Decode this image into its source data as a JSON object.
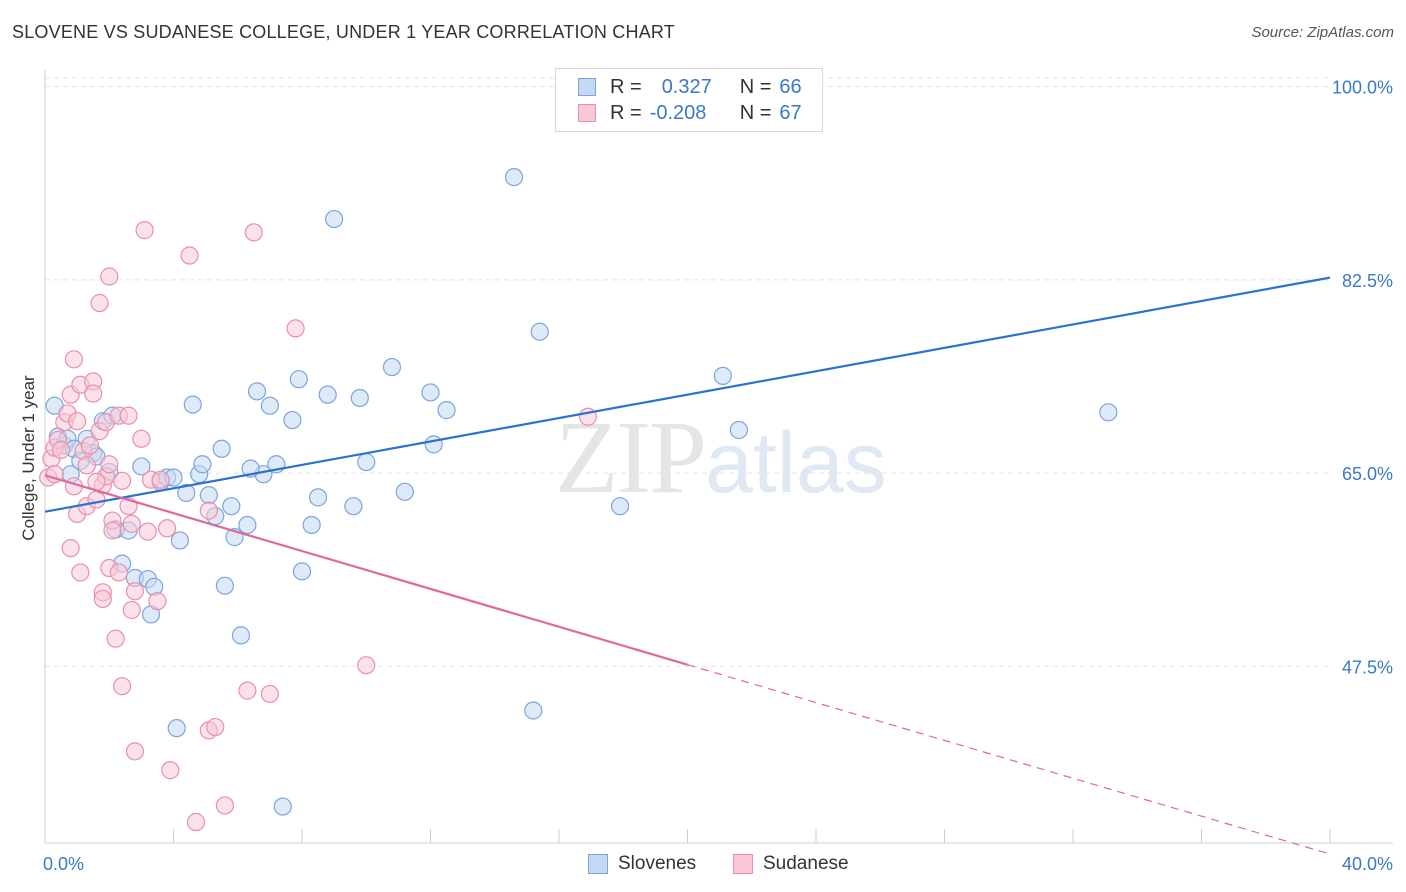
{
  "title": "SLOVENE VS SUDANESE COLLEGE, UNDER 1 YEAR CORRELATION CHART",
  "source": "Source: ZipAtlas.com",
  "watermark": {
    "zip": "ZIP",
    "atlas": "atlas"
  },
  "legend_top": {
    "rows": [
      {
        "r_label": "R =",
        "r_value": "0.327",
        "n_label": "N =",
        "n_value": "66"
      },
      {
        "r_label": "R =",
        "r_value": "-0.208",
        "n_label": "N =",
        "n_value": "67"
      }
    ]
  },
  "legend_bottom": [
    "Slovenes",
    "Sudanese"
  ],
  "colors": {
    "blue_fill": "#c5d8f2",
    "blue_stroke": "#7aa6dc",
    "blue_line": "#2a72d0",
    "pink_fill": "#f8c8d8",
    "pink_stroke": "#e98fae",
    "pink_line": "#e0689a",
    "axis_label": "#3a78c8",
    "grid": "#e3e3e3"
  },
  "chart_data": {
    "type": "scatter",
    "title": "SLOVENE VS SUDANESE COLLEGE, UNDER 1 YEAR CORRELATION CHART",
    "xlabel": "",
    "ylabel": "College, Under 1 year",
    "xlim": [
      0,
      40
    ],
    "ylim": [
      31.5,
      101.5
    ],
    "x_tick_labels": [
      "0.0%",
      "40.0%"
    ],
    "y_ticks": [
      47.5,
      65.0,
      82.5,
      100.0
    ],
    "y_tick_labels": [
      "47.5%",
      "65.0%",
      "82.5%",
      "100.0%"
    ],
    "series": [
      {
        "name": "Slovenes",
        "R": 0.327,
        "N": 66,
        "trend": {
          "x": [
            0,
            40
          ],
          "y": [
            61.5,
            82.7
          ],
          "dashed_from": null
        },
        "points": [
          [
            0.3,
            71.1
          ],
          [
            0.4,
            68.3
          ],
          [
            0.6,
            67.5
          ],
          [
            0.7,
            68.1
          ],
          [
            0.8,
            64.9
          ],
          [
            0.9,
            67.2
          ],
          [
            1.1,
            66.1
          ],
          [
            1.3,
            68.1
          ],
          [
            1.5,
            66.8
          ],
          [
            1.6,
            66.5
          ],
          [
            1.8,
            69.7
          ],
          [
            2.0,
            65.1
          ],
          [
            2.1,
            70.2
          ],
          [
            2.2,
            59.9
          ],
          [
            2.4,
            56.8
          ],
          [
            2.6,
            59.8
          ],
          [
            2.8,
            55.5
          ],
          [
            3.0,
            65.6
          ],
          [
            3.2,
            55.4
          ],
          [
            3.3,
            52.2
          ],
          [
            3.4,
            54.7
          ],
          [
            3.6,
            64.2
          ],
          [
            3.8,
            64.6
          ],
          [
            4.0,
            64.6
          ],
          [
            4.2,
            58.9
          ],
          [
            4.4,
            63.2
          ],
          [
            4.6,
            71.2
          ],
          [
            4.8,
            64.9
          ],
          [
            4.9,
            65.8
          ],
          [
            5.1,
            63.0
          ],
          [
            5.3,
            61.1
          ],
          [
            5.5,
            67.2
          ],
          [
            5.6,
            54.8
          ],
          [
            5.8,
            62.0
          ],
          [
            5.9,
            59.2
          ],
          [
            6.1,
            50.3
          ],
          [
            6.3,
            60.3
          ],
          [
            6.6,
            72.4
          ],
          [
            6.8,
            64.9
          ],
          [
            7.0,
            71.1
          ],
          [
            7.2,
            65.8
          ],
          [
            7.4,
            34.8
          ],
          [
            7.7,
            69.8
          ],
          [
            7.9,
            73.5
          ],
          [
            8.3,
            60.3
          ],
          [
            8.5,
            62.8
          ],
          [
            8.8,
            72.1
          ],
          [
            9.0,
            88.0
          ],
          [
            9.6,
            62.0
          ],
          [
            9.8,
            71.8
          ],
          [
            10.0,
            66.0
          ],
          [
            10.8,
            74.6
          ],
          [
            11.2,
            63.3
          ],
          [
            12.0,
            72.3
          ],
          [
            12.1,
            67.6
          ],
          [
            12.5,
            70.7
          ],
          [
            14.6,
            91.8
          ],
          [
            15.2,
            43.5
          ],
          [
            15.4,
            77.8
          ],
          [
            17.9,
            62.0
          ],
          [
            21.1,
            73.8
          ],
          [
            21.6,
            68.9
          ],
          [
            33.1,
            70.5
          ],
          [
            4.1,
            41.9
          ],
          [
            6.4,
            65.4
          ],
          [
            8.0,
            56.1
          ]
        ]
      },
      {
        "name": "Sudanese",
        "R": -0.208,
        "N": 67,
        "trend": {
          "x": [
            0,
            40
          ],
          "y": [
            64.8,
            30.5
          ],
          "dashed_from": 20.0
        },
        "points": [
          [
            0.1,
            64.6
          ],
          [
            0.2,
            66.3
          ],
          [
            0.3,
            67.3
          ],
          [
            0.4,
            68.0
          ],
          [
            0.5,
            67.1
          ],
          [
            0.6,
            69.6
          ],
          [
            0.7,
            70.4
          ],
          [
            0.8,
            58.2
          ],
          [
            0.9,
            63.8
          ],
          [
            0.8,
            72.1
          ],
          [
            0.9,
            75.3
          ],
          [
            1.0,
            69.7
          ],
          [
            1.0,
            61.3
          ],
          [
            1.1,
            56.0
          ],
          [
            1.1,
            73.0
          ],
          [
            1.2,
            67.0
          ],
          [
            1.3,
            65.7
          ],
          [
            1.3,
            62.0
          ],
          [
            1.4,
            67.5
          ],
          [
            1.5,
            73.3
          ],
          [
            1.5,
            72.2
          ],
          [
            1.6,
            62.6
          ],
          [
            1.7,
            80.4
          ],
          [
            1.7,
            68.8
          ],
          [
            1.8,
            54.2
          ],
          [
            1.8,
            53.6
          ],
          [
            1.8,
            63.9
          ],
          [
            1.9,
            64.7
          ],
          [
            1.9,
            69.6
          ],
          [
            2.0,
            65.8
          ],
          [
            2.0,
            82.8
          ],
          [
            2.0,
            56.4
          ],
          [
            2.1,
            60.7
          ],
          [
            2.1,
            59.8
          ],
          [
            2.2,
            50.0
          ],
          [
            2.3,
            56.0
          ],
          [
            2.3,
            70.2
          ],
          [
            2.4,
            64.3
          ],
          [
            2.4,
            45.7
          ],
          [
            2.6,
            70.2
          ],
          [
            2.7,
            60.4
          ],
          [
            2.7,
            52.6
          ],
          [
            2.8,
            39.8
          ],
          [
            2.8,
            54.3
          ],
          [
            3.0,
            68.1
          ],
          [
            3.1,
            87.0
          ],
          [
            3.2,
            59.7
          ],
          [
            3.3,
            64.4
          ],
          [
            3.5,
            53.4
          ],
          [
            3.6,
            64.4
          ],
          [
            3.9,
            38.1
          ],
          [
            4.5,
            84.7
          ],
          [
            4.7,
            33.4
          ],
          [
            5.1,
            41.7
          ],
          [
            5.3,
            42.0
          ],
          [
            5.6,
            34.9
          ],
          [
            6.3,
            45.3
          ],
          [
            6.5,
            86.8
          ],
          [
            7.0,
            45.0
          ],
          [
            7.8,
            78.1
          ],
          [
            10.0,
            47.6
          ],
          [
            16.9,
            70.1
          ],
          [
            0.3,
            64.9
          ],
          [
            1.6,
            64.2
          ],
          [
            2.6,
            62.0
          ],
          [
            5.1,
            61.6
          ],
          [
            3.8,
            60.0
          ]
        ]
      }
    ],
    "legend": "top-center"
  }
}
